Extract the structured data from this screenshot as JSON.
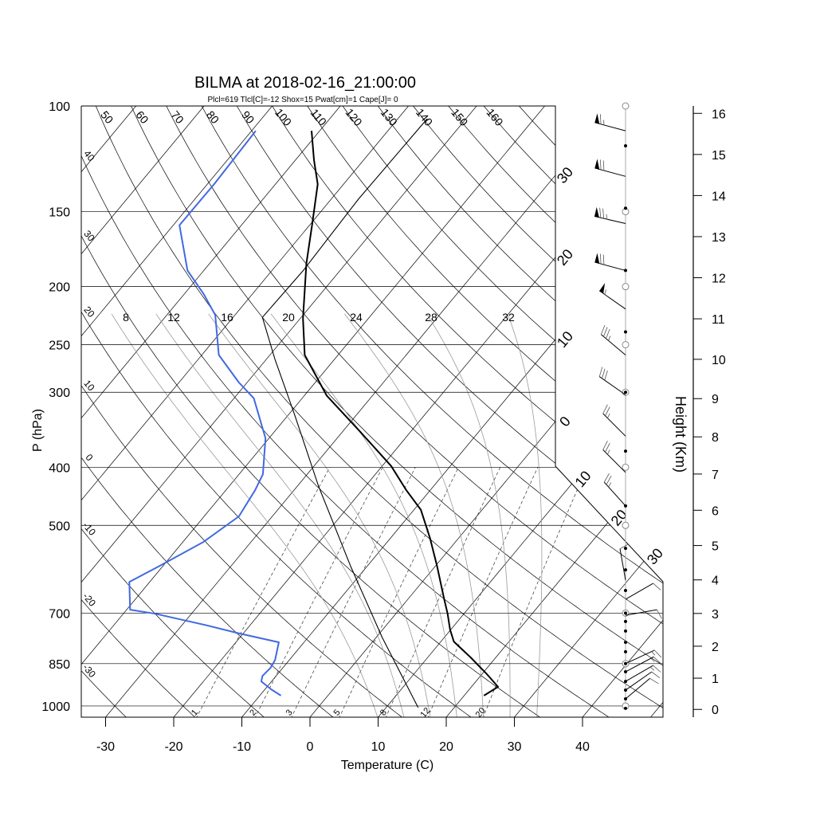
{
  "chart_data": {
    "type": "line",
    "title": "BILMA at 2018-02-16_21:00:00",
    "subtitle": "Plcl=619 Tlcl[C]=-12 Shox=15 Pwat[cm]=1 Cape[J]= 0",
    "xlabel": "Temperature (C)",
    "ylabel": "P (hPa)",
    "y2label": "Height (Km)",
    "xlim": [
      -33,
      52
    ],
    "ylim_hpa": [
      1050,
      100
    ],
    "x_ticks": [
      "-30",
      "-20",
      "-10",
      "0",
      "10",
      "20",
      "30",
      "40"
    ],
    "x_tick_values": [
      -30,
      -20,
      -10,
      0,
      10,
      20,
      30,
      40
    ],
    "pressure_ticks": [
      "100",
      "150",
      "200",
      "250",
      "300",
      "400",
      "500",
      "700",
      "850",
      "1000"
    ],
    "pressure_tick_values": [
      100,
      150,
      200,
      250,
      300,
      400,
      500,
      700,
      850,
      1000
    ],
    "height_ticks": [
      "0",
      "1",
      "2",
      "3",
      "4",
      "5",
      "6",
      "7",
      "8",
      "9",
      "10",
      "11",
      "12",
      "13",
      "14",
      "15",
      "16"
    ],
    "height_tick_values_km": [
      0,
      1,
      2,
      3,
      4,
      5,
      6,
      7,
      8,
      9,
      10,
      11,
      12,
      13,
      14,
      15,
      16
    ],
    "colors": {
      "temperature": "#000000",
      "dewpoint": "#4169e1",
      "parcel": "#000000",
      "subtitle": "#a0522d",
      "moist_adiabat": "#9a9a9a"
    },
    "series": [
      {
        "name": "temperature",
        "points": [
          [
            961,
            22.9
          ],
          [
            929,
            23.9
          ],
          [
            882,
            20.5
          ],
          [
            830,
            16.3
          ],
          [
            781,
            11.9
          ],
          [
            746,
            9.9
          ],
          [
            702,
            7.6
          ],
          [
            660,
            5.1
          ],
          [
            584,
            0.2
          ],
          [
            525,
            -4.2
          ],
          [
            471,
            -9.0
          ],
          [
            437,
            -13.5
          ],
          [
            398,
            -18.7
          ],
          [
            347,
            -27.8
          ],
          [
            304,
            -36.7
          ],
          [
            260,
            -44.9
          ],
          [
            226,
            -49.6
          ],
          [
            183,
            -55.8
          ],
          [
            157,
            -59.8
          ],
          [
            135,
            -63.8
          ],
          [
            123,
            -67.3
          ],
          [
            110,
            -71.2
          ]
        ]
      },
      {
        "name": "dewpoint",
        "points": [
          [
            961,
            -6.9
          ],
          [
            938,
            -9.1
          ],
          [
            910,
            -11.5
          ],
          [
            891,
            -12.0
          ],
          [
            864,
            -11.8
          ],
          [
            838,
            -12.1
          ],
          [
            783,
            -13.7
          ],
          [
            757,
            -20.6
          ],
          [
            734,
            -26.3
          ],
          [
            702,
            -35.3
          ],
          [
            691,
            -39.5
          ],
          [
            621,
            -43.0
          ],
          [
            584,
            -40.5
          ],
          [
            533,
            -37.0
          ],
          [
            483,
            -34.9
          ],
          [
            437,
            -35.7
          ],
          [
            411,
            -36.5
          ],
          [
            358,
            -40.5
          ],
          [
            307,
            -47.1
          ],
          [
            289,
            -51.2
          ],
          [
            260,
            -57.5
          ],
          [
            223,
            -62.9
          ],
          [
            206,
            -67.1
          ],
          [
            188,
            -72.4
          ],
          [
            158,
            -79.1
          ],
          [
            135,
            -79.0
          ],
          [
            110,
            -79.4
          ]
        ]
      },
      {
        "name": "parcel",
        "points": [
          [
            1006,
            14.7
          ],
          [
            769,
            0.9
          ],
          [
            584,
            -12.5
          ],
          [
            430,
            -26.9
          ],
          [
            327,
            -39.1
          ],
          [
            264,
            -48.8
          ],
          [
            225,
            -55.7
          ],
          [
            188,
            -55.4
          ],
          [
            143,
            -56.0
          ],
          [
            105,
            -55.7
          ]
        ]
      }
    ],
    "isotherm_values": [
      -100,
      -90,
      -80,
      -70,
      -60,
      -50,
      -40,
      -30,
      -20,
      -10,
      0,
      10,
      20,
      30,
      40,
      50
    ],
    "isotherm_labels": [
      {
        "t": -30,
        "text": "30"
      },
      {
        "t": -20,
        "text": "20"
      },
      {
        "t": -10,
        "text": "10"
      },
      {
        "t": 0,
        "text": "0"
      },
      {
        "t": 10,
        "text": "10"
      },
      {
        "t": 20,
        "text": "20"
      },
      {
        "t": 30,
        "text": "30"
      }
    ],
    "dry_adiabat_left_labels": [
      "40",
      "30",
      "20",
      "10",
      "0",
      "-10",
      "-20",
      "-30"
    ],
    "dry_adiabat_left_values": [
      40,
      30,
      20,
      10,
      0,
      -10,
      -20,
      -30
    ],
    "dry_adiabat_top_labels": [
      "50",
      "60",
      "70",
      "80",
      "90",
      "100",
      "110",
      "120",
      "130",
      "140",
      "150",
      "160"
    ],
    "dry_adiabat_top_values": [
      50,
      60,
      70,
      80,
      90,
      100,
      110,
      120,
      130,
      140,
      150,
      160
    ],
    "moist_adiabat_labels": [
      "8",
      "12",
      "16",
      "20",
      "24",
      "28",
      "32"
    ],
    "moist_adiabat_values": [
      8,
      12,
      16,
      20,
      24,
      28,
      32
    ],
    "mixing_ratio_labels": [
      "1",
      "2",
      "3",
      "5",
      "8",
      "12",
      "20"
    ],
    "mixing_ratio_values": [
      1,
      2,
      3,
      5,
      8,
      12,
      20
    ],
    "sounding_level_dots_hpa": [
      116.5,
      148,
      188,
      238,
      300,
      376,
      464,
      546,
      593,
      642,
      700,
      723,
      750,
      783,
      812,
      850,
      877,
      910,
      941,
      973,
      1009
    ],
    "standard_level_circles_hpa": [
      100,
      150,
      200,
      250,
      300,
      400,
      500,
      700,
      850,
      1000
    ],
    "winds": [
      {
        "p": 110,
        "dir": 285,
        "kt": 65
      },
      {
        "p": 131,
        "dir": 285,
        "kt": 70
      },
      {
        "p": 157,
        "dir": 283,
        "kt": 75
      },
      {
        "p": 188,
        "dir": 285,
        "kt": 70
      },
      {
        "p": 218,
        "dir": 305,
        "kt": 55
      },
      {
        "p": 260,
        "dir": 310,
        "kt": 35
      },
      {
        "p": 303,
        "dir": 305,
        "kt": 30
      },
      {
        "p": 355,
        "dir": 315,
        "kt": 25
      },
      {
        "p": 408,
        "dir": 315,
        "kt": 25
      },
      {
        "p": 464,
        "dir": 318,
        "kt": 25
      },
      {
        "p": 617,
        "dir": 350,
        "kt": 10
      },
      {
        "p": 664,
        "dir": 60,
        "kt": 10
      },
      {
        "p": 706,
        "dir": 80,
        "kt": 10
      },
      {
        "p": 850,
        "dir": 65,
        "kt": 15
      },
      {
        "p": 877,
        "dir": 62,
        "kt": 15
      },
      {
        "p": 910,
        "dir": 60,
        "kt": 15
      },
      {
        "p": 941,
        "dir": 55,
        "kt": 10
      },
      {
        "p": 973,
        "dir": 50,
        "kt": 10
      }
    ]
  }
}
